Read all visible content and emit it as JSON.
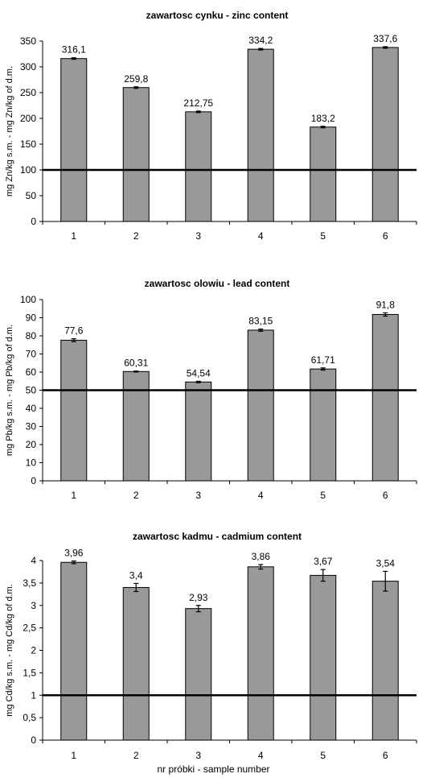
{
  "chart_data": [
    {
      "type": "bar",
      "title": "zawartosc cynku - zinc content",
      "ylabel": "mg Zn/kg s.m. - mg Zn/kg of d.m.",
      "xlabel": "",
      "categories": [
        "1",
        "2",
        "3",
        "4",
        "5",
        "6"
      ],
      "values": [
        316.1,
        259.8,
        212.75,
        334.2,
        183.2,
        337.6
      ],
      "value_labels": [
        "316,1",
        "259,8",
        "212,75",
        "334,2",
        "183,2",
        "337,6"
      ],
      "errors": [
        1.5,
        1.5,
        1.5,
        1.5,
        1.5,
        1.5
      ],
      "ylim": [
        0,
        350
      ],
      "yticks": [
        "0",
        "50",
        "100",
        "150",
        "200",
        "250",
        "300",
        "350"
      ],
      "reference_line": 100,
      "bar_color": "#999999",
      "grid": false
    },
    {
      "type": "bar",
      "title": "zawartosc olowiu - lead content",
      "ylabel": "mg Pb/kg s.m. - mg Pb/kg of d.m.",
      "xlabel": "",
      "categories": [
        "1",
        "2",
        "3",
        "4",
        "5",
        "6"
      ],
      "values": [
        77.6,
        60.31,
        54.54,
        83.15,
        61.71,
        91.8
      ],
      "value_labels": [
        "77,6",
        "60,31",
        "54,54",
        "83,15",
        "61,71",
        "91,8"
      ],
      "errors": [
        0.8,
        0.3,
        0.4,
        0.6,
        0.6,
        0.9
      ],
      "ylim": [
        0,
        100
      ],
      "yticks": [
        "0",
        "10",
        "20",
        "30",
        "40",
        "50",
        "60",
        "70",
        "80",
        "90",
        "100"
      ],
      "reference_line": 50,
      "bar_color": "#999999",
      "grid": false
    },
    {
      "type": "bar",
      "title": "zawartosc kadmu - cadmium content",
      "ylabel": "mg Cd/kg s.m. - mg Cd/kg of d.m.",
      "xlabel": "nr próbki - sample number",
      "categories": [
        "1",
        "2",
        "3",
        "4",
        "5",
        "6"
      ],
      "values": [
        3.96,
        3.4,
        2.93,
        3.86,
        3.67,
        3.54
      ],
      "value_labels": [
        "3,96",
        "3,4",
        "2,93",
        "3,86",
        "3,67",
        "3,54"
      ],
      "errors": [
        0.03,
        0.09,
        0.07,
        0.05,
        0.13,
        0.22
      ],
      "ylim": [
        0,
        4
      ],
      "yticks": [
        "0",
        "0,5",
        "1",
        "1,5",
        "2",
        "2,5",
        "3",
        "3,5",
        "4"
      ],
      "reference_line": 1,
      "bar_color": "#999999",
      "grid": false
    }
  ]
}
